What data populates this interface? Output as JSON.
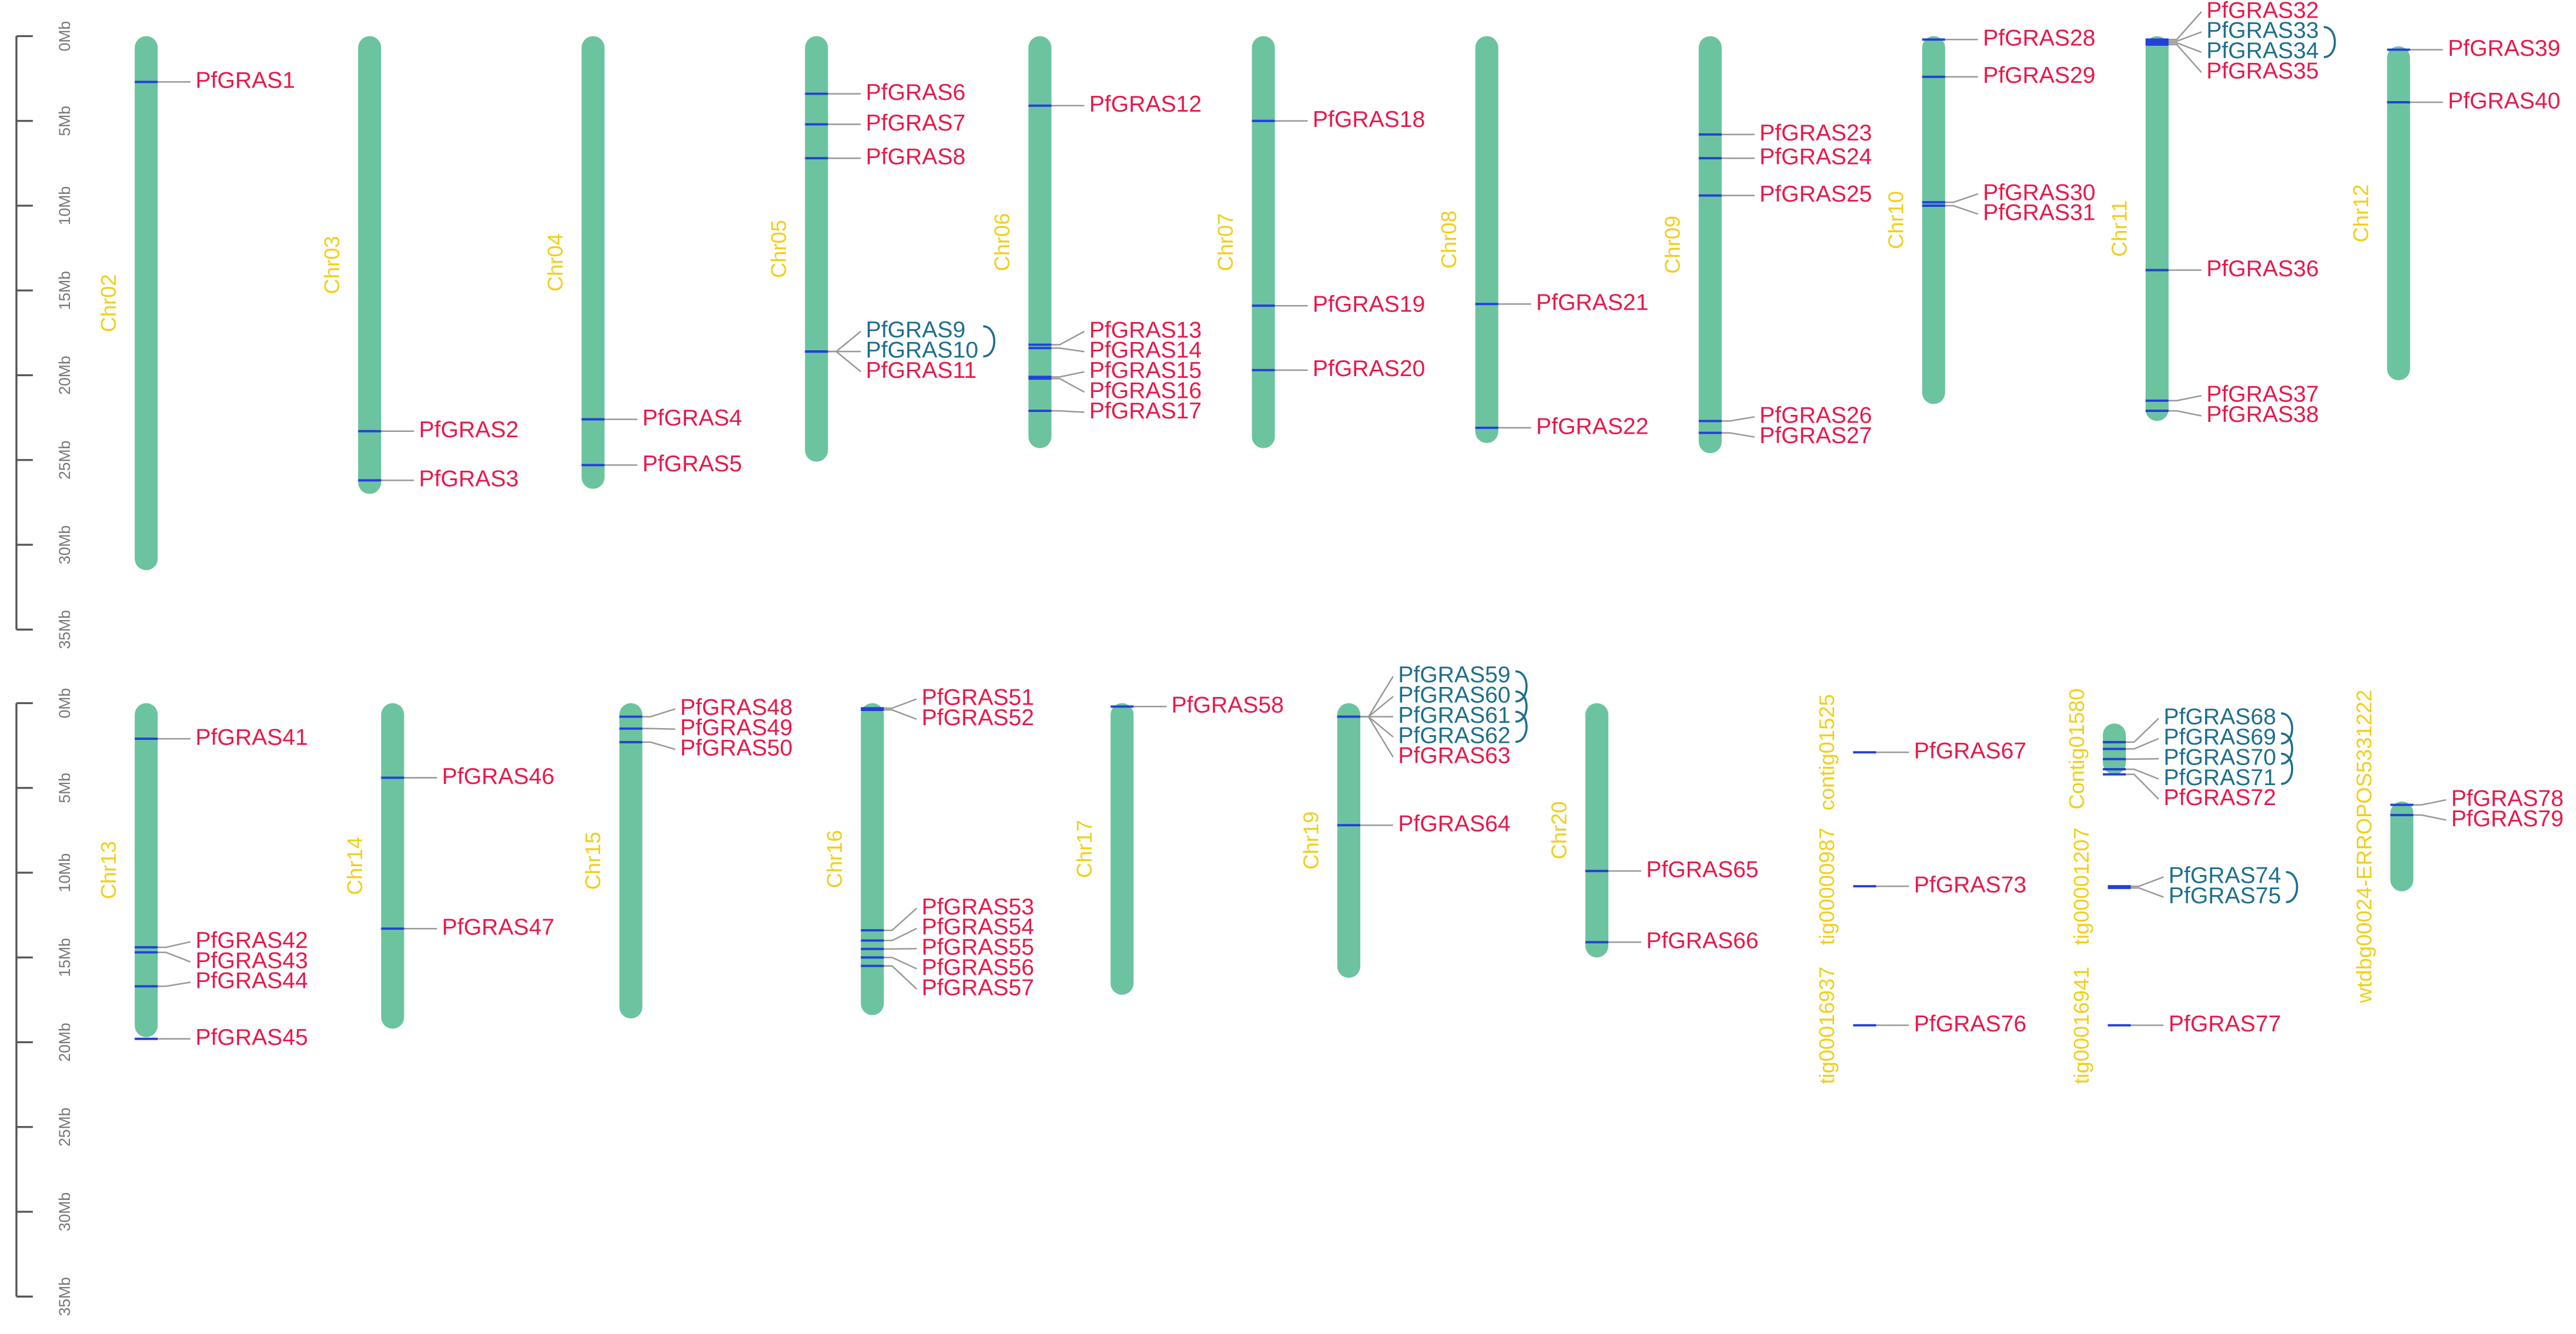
{
  "colors": {
    "chromosome": "#6cc3a0",
    "gene_mark": "#2440d8",
    "gene_label": "#e8194a",
    "duplicated_label": "#1e6f8c",
    "chromosome_label": "#f0cf1a",
    "connector": "#999999",
    "axis": "#555555"
  },
  "panels": [
    {
      "axis": {
        "ylim": [
          0,
          35
        ],
        "ticks": [
          {
            "value": 0,
            "label": "0Mb"
          },
          {
            "value": 5,
            "label": "5Mb"
          },
          {
            "value": 10,
            "label": "10Mb"
          },
          {
            "value": 15,
            "label": "15Mb"
          },
          {
            "value": 20,
            "label": "20Mb"
          },
          {
            "value": 25,
            "label": "25Mb"
          },
          {
            "value": 30,
            "label": "30Mb"
          },
          {
            "value": 35,
            "label": "35Mb"
          }
        ]
      },
      "chromosomes": [
        {
          "name": "Chr02",
          "start": 0,
          "end": 31.5,
          "genes": [
            {
              "name": "PfGRAS1",
              "pos": 2.7
            }
          ]
        },
        {
          "name": "Chr03",
          "start": 0,
          "end": 27,
          "genes": [
            {
              "name": "PfGRAS2",
              "pos": 23.3
            },
            {
              "name": "PfGRAS3",
              "pos": 26.2
            }
          ]
        },
        {
          "name": "Chr04",
          "start": 0,
          "end": 26.7,
          "genes": [
            {
              "name": "PfGRAS4",
              "pos": 22.6
            },
            {
              "name": "PfGRAS5",
              "pos": 25.3
            }
          ]
        },
        {
          "name": "Chr05",
          "start": 0,
          "end": 25.1,
          "genes": [
            {
              "name": "PfGRAS6",
              "pos": 3.4
            },
            {
              "name": "PfGRAS7",
              "pos": 5.2
            },
            {
              "name": "PfGRAS8",
              "pos": 7.2
            },
            {
              "name": "PfGRAS9",
              "pos": 18.6,
              "dup": true
            },
            {
              "name": "PfGRAS10",
              "pos": 18.6,
              "dup": true
            },
            {
              "name": "PfGRAS11",
              "pos": 18.6
            }
          ]
        },
        {
          "name": "Chr06",
          "start": 0,
          "end": 24.3,
          "genes": [
            {
              "name": "PfGRAS12",
              "pos": 4.1
            },
            {
              "name": "PfGRAS13",
              "pos": 18.2
            },
            {
              "name": "PfGRAS14",
              "pos": 18.4
            },
            {
              "name": "PfGRAS15",
              "pos": 20.1
            },
            {
              "name": "PfGRAS16",
              "pos": 20.2
            },
            {
              "name": "PfGRAS17",
              "pos": 22.1
            }
          ]
        },
        {
          "name": "Chr07",
          "start": 0,
          "end": 24.3,
          "genes": [
            {
              "name": "PfGRAS18",
              "pos": 5.0
            },
            {
              "name": "PfGRAS19",
              "pos": 15.9
            },
            {
              "name": "PfGRAS20",
              "pos": 19.7
            }
          ]
        },
        {
          "name": "Chr08",
          "start": 0,
          "end": 24,
          "genes": [
            {
              "name": "PfGRAS21",
              "pos": 15.8
            },
            {
              "name": "PfGRAS22",
              "pos": 23.1
            }
          ]
        },
        {
          "name": "Chr09",
          "start": 0,
          "end": 24.6,
          "genes": [
            {
              "name": "PfGRAS23",
              "pos": 5.8
            },
            {
              "name": "PfGRAS24",
              "pos": 7.2
            },
            {
              "name": "PfGRAS25",
              "pos": 9.4
            },
            {
              "name": "PfGRAS26",
              "pos": 22.7
            },
            {
              "name": "PfGRAS27",
              "pos": 23.4
            }
          ]
        },
        {
          "name": "Chr10",
          "start": 0,
          "end": 21.7,
          "genes": [
            {
              "name": "PfGRAS28",
              "pos": 0.2
            },
            {
              "name": "PfGRAS29",
              "pos": 2.4
            },
            {
              "name": "PfGRAS30",
              "pos": 9.8
            },
            {
              "name": "PfGRAS31",
              "pos": 10
            }
          ]
        },
        {
          "name": "Chr11",
          "start": 0,
          "end": 22.7,
          "genes": [
            {
              "name": "PfGRAS32",
              "pos": 0.2
            },
            {
              "name": "PfGRAS33",
              "pos": 0.3,
              "dup": true
            },
            {
              "name": "PfGRAS34",
              "pos": 0.4,
              "dup": true
            },
            {
              "name": "PfGRAS35",
              "pos": 0.5
            },
            {
              "name": "PfGRAS36",
              "pos": 13.8
            },
            {
              "name": "PfGRAS37",
              "pos": 21.5
            },
            {
              "name": "PfGRAS38",
              "pos": 22.1
            }
          ]
        },
        {
          "name": "Chr12",
          "start": 0.6,
          "end": 20.3,
          "genes": [
            {
              "name": "PfGRAS39",
              "pos": 0.8
            },
            {
              "name": "PfGRAS40",
              "pos": 3.9
            }
          ]
        }
      ]
    },
    {
      "axis": {
        "ylim": [
          0,
          35
        ],
        "ticks": [
          {
            "value": 0,
            "label": "0Mb"
          },
          {
            "value": 5,
            "label": "5Mb"
          },
          {
            "value": 10,
            "label": "10Mb"
          },
          {
            "value": 15,
            "label": "15Mb"
          },
          {
            "value": 20,
            "label": "20Mb"
          },
          {
            "value": 25,
            "label": "25Mb"
          },
          {
            "value": 30,
            "label": "30Mb"
          },
          {
            "value": 35,
            "label": "35Mb"
          }
        ]
      },
      "chromosomes": [
        {
          "name": "Chr13",
          "start": 0,
          "end": 19.7,
          "genes": [
            {
              "name": "PfGRAS41",
              "pos": 2.1
            },
            {
              "name": "PfGRAS42",
              "pos": 14.4
            },
            {
              "name": "PfGRAS43",
              "pos": 14.7
            },
            {
              "name": "PfGRAS44",
              "pos": 16.7
            },
            {
              "name": "PfGRAS45",
              "pos": 19.8
            }
          ]
        },
        {
          "name": "Chr14",
          "start": 0,
          "end": 19.2,
          "genes": [
            {
              "name": "PfGRAS46",
              "pos": 4.4
            },
            {
              "name": "PfGRAS47",
              "pos": 13.3
            }
          ]
        },
        {
          "name": "Chr15",
          "start": 0,
          "end": 18.6,
          "genes": [
            {
              "name": "PfGRAS48",
              "pos": 0.8
            },
            {
              "name": "PfGRAS49",
              "pos": 1.5
            },
            {
              "name": "PfGRAS50",
              "pos": 2.3
            }
          ]
        },
        {
          "name": "Chr16",
          "start": 0,
          "end": 18.4,
          "genes": [
            {
              "name": "PfGRAS51",
              "pos": 0.3
            },
            {
              "name": "PfGRAS52",
              "pos": 0.4
            },
            {
              "name": "PfGRAS53",
              "pos": 13.4
            },
            {
              "name": "PfGRAS54",
              "pos": 14.0
            },
            {
              "name": "PfGRAS55",
              "pos": 14.5
            },
            {
              "name": "PfGRAS56",
              "pos": 15.0
            },
            {
              "name": "PfGRAS57",
              "pos": 15.5
            }
          ]
        },
        {
          "name": "Chr17",
          "start": 0,
          "end": 17.2,
          "genes": [
            {
              "name": "PfGRAS58",
              "pos": 0.2
            }
          ]
        },
        {
          "name": "Chr19",
          "start": 0,
          "end": 16.2,
          "genes": [
            {
              "name": "PfGRAS59",
              "pos": 0.8,
              "dup": true
            },
            {
              "name": "PfGRAS60",
              "pos": 0.8,
              "dup": true
            },
            {
              "name": "PfGRAS61",
              "pos": 0.8,
              "dup": true
            },
            {
              "name": "PfGRAS62",
              "pos": 0.8,
              "dup": true
            },
            {
              "name": "PfGRAS63",
              "pos": 0.8
            },
            {
              "name": "PfGRAS64",
              "pos": 7.2
            }
          ]
        },
        {
          "name": "Chr20",
          "start": 0,
          "end": 15,
          "genes": [
            {
              "name": "PfGRAS65",
              "pos": 9.9
            },
            {
              "name": "PfGRAS66",
              "pos": 14.1
            }
          ]
        },
        {
          "name": "contig01525",
          "start": 2.9,
          "end": 2.9,
          "genes": [
            {
              "name": "PfGRAS67",
              "pos": 2.9
            }
          ]
        },
        {
          "name": "tig00000987",
          "start": 10.8,
          "end": 10.8,
          "genes": [
            {
              "name": "PfGRAS73",
              "pos": 10.8
            }
          ]
        },
        {
          "name": "tig00016937",
          "start": 19.0,
          "end": 19.0,
          "genes": [
            {
              "name": "PfGRAS76",
              "pos": 19.0
            }
          ]
        },
        {
          "name": "Contig01580",
          "start": 1.2,
          "end": 4.2,
          "genes": [
            {
              "name": "PfGRAS68",
              "pos": 2.3,
              "dup": true
            },
            {
              "name": "PfGRAS69",
              "pos": 2.7,
              "dup": true
            },
            {
              "name": "PfGRAS70",
              "pos": 3.3,
              "dup": true
            },
            {
              "name": "PfGRAS71",
              "pos": 3.9,
              "dup": true
            },
            {
              "name": "PfGRAS72",
              "pos": 4.2
            }
          ]
        },
        {
          "name": "tig00001207",
          "start": 10.8,
          "end": 10.8,
          "genes": [
            {
              "name": "PfGRAS74",
              "pos": 10.8,
              "dup": true
            },
            {
              "name": "PfGRAS75",
              "pos": 10.9,
              "dup": true
            }
          ]
        },
        {
          "name": "tig00016941",
          "start": 19.0,
          "end": 19.0,
          "genes": [
            {
              "name": "PfGRAS77",
              "pos": 19.0
            }
          ]
        },
        {
          "name": "wtdbg00024-ERROPOS5331222",
          "start": 5.8,
          "end": 11.1,
          "genes": [
            {
              "name": "PfGRAS78",
              "pos": 6.0
            },
            {
              "name": "PfGRAS79",
              "pos": 6.6
            }
          ]
        }
      ]
    }
  ]
}
